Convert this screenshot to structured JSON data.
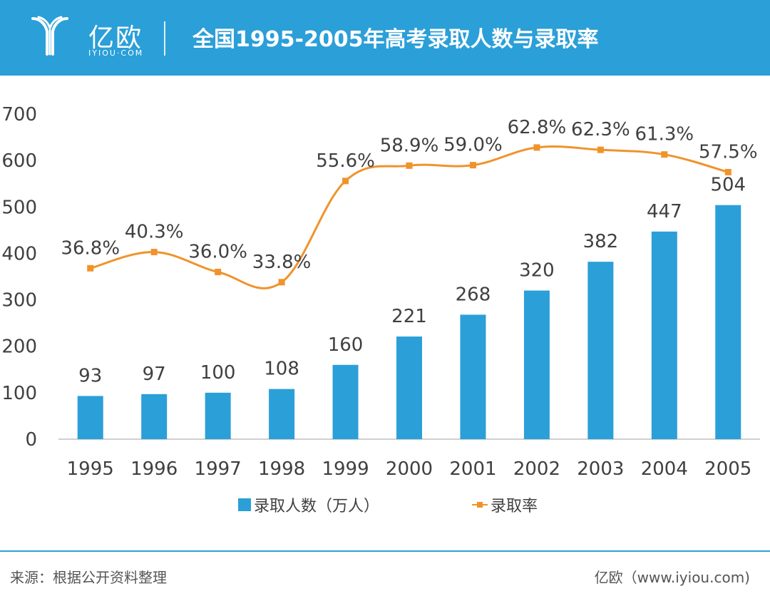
{
  "header": {
    "logo_cn": "亿欧",
    "logo_en": "IYIOU·COM",
    "title": "全国1995-2005年高考录取人数与录取率"
  },
  "chart_data": {
    "type": "bar",
    "categories": [
      "1995",
      "1996",
      "1997",
      "1998",
      "1999",
      "2000",
      "2001",
      "2002",
      "2003",
      "2004",
      "2005"
    ],
    "series": [
      {
        "name": "录取人数（万人）",
        "type": "bar",
        "values": [
          93,
          97,
          100,
          108,
          160,
          221,
          268,
          320,
          382,
          447,
          504
        ],
        "labels": [
          "93",
          "97",
          "100",
          "108",
          "160",
          "221",
          "268",
          "320",
          "382",
          "447",
          "504"
        ],
        "color": "#2b9fd8"
      },
      {
        "name": "录取率",
        "type": "line",
        "values": [
          36.8,
          40.3,
          36.0,
          33.8,
          55.6,
          58.9,
          59.0,
          62.8,
          62.3,
          61.3,
          57.5
        ],
        "labels": [
          "36.8%",
          "40.3%",
          "36.0%",
          "33.8%",
          "55.6%",
          "58.9%",
          "59.0%",
          "62.8%",
          "62.3%",
          "61.3%",
          "57.5%"
        ],
        "color": "#f0932b"
      }
    ],
    "y_ticks": [
      "0",
      "100",
      "200",
      "300",
      "400",
      "500",
      "600",
      "700"
    ],
    "ylim": [
      0,
      700
    ],
    "grid": false,
    "legend_position": "bottom"
  },
  "legend": {
    "bar_label": "录取人数（万人）",
    "line_label": "录取率"
  },
  "footer": {
    "source": "来源：根据公开资料整理",
    "site": "亿欧（www.iyiou.com)"
  }
}
